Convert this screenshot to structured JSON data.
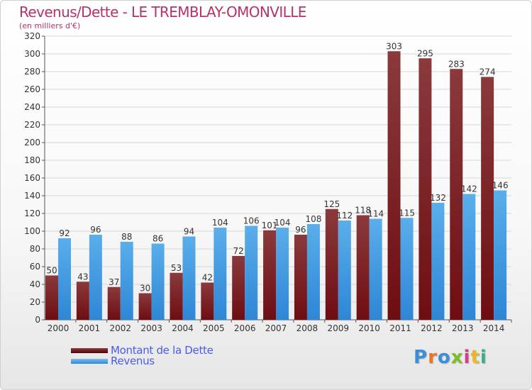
{
  "title": "Revenus/Dette - LE TREMBLAY-OMONVILLE",
  "subtitle": "(en milliers d'€)",
  "logo_text": "Proxiti",
  "colors": {
    "debt": "#6e0d12",
    "debt_top": "#8a3a3c",
    "revenue": "#2e86d6",
    "revenue_top": "#5aaeea",
    "title": "#b5326a",
    "legend_text": "#4a5be8"
  },
  "chart_data": {
    "type": "bar",
    "title": "Revenus/Dette - LE TREMBLAY-OMONVILLE",
    "ylabel": "(en milliers d'€)",
    "categories": [
      "2000",
      "2001",
      "2002",
      "2003",
      "2004",
      "2005",
      "2006",
      "2007",
      "2008",
      "2009",
      "2010",
      "2011",
      "2012",
      "2013",
      "2014"
    ],
    "series": [
      {
        "name": "Montant de la Dette",
        "values": [
          50,
          43,
          37,
          30,
          53,
          42,
          72,
          101,
          96,
          125,
          118,
          303,
          295,
          283,
          274
        ]
      },
      {
        "name": "Revenus",
        "values": [
          92,
          96,
          88,
          86,
          94,
          104,
          106,
          104,
          108,
          112,
          114,
          115,
          132,
          142,
          146
        ]
      }
    ],
    "ylim": [
      0,
      320
    ],
    "yticks": [
      0,
      20,
      40,
      60,
      80,
      100,
      120,
      140,
      160,
      180,
      200,
      220,
      240,
      260,
      280,
      300,
      320
    ],
    "grid": true,
    "legend_position": "bottom-left"
  }
}
